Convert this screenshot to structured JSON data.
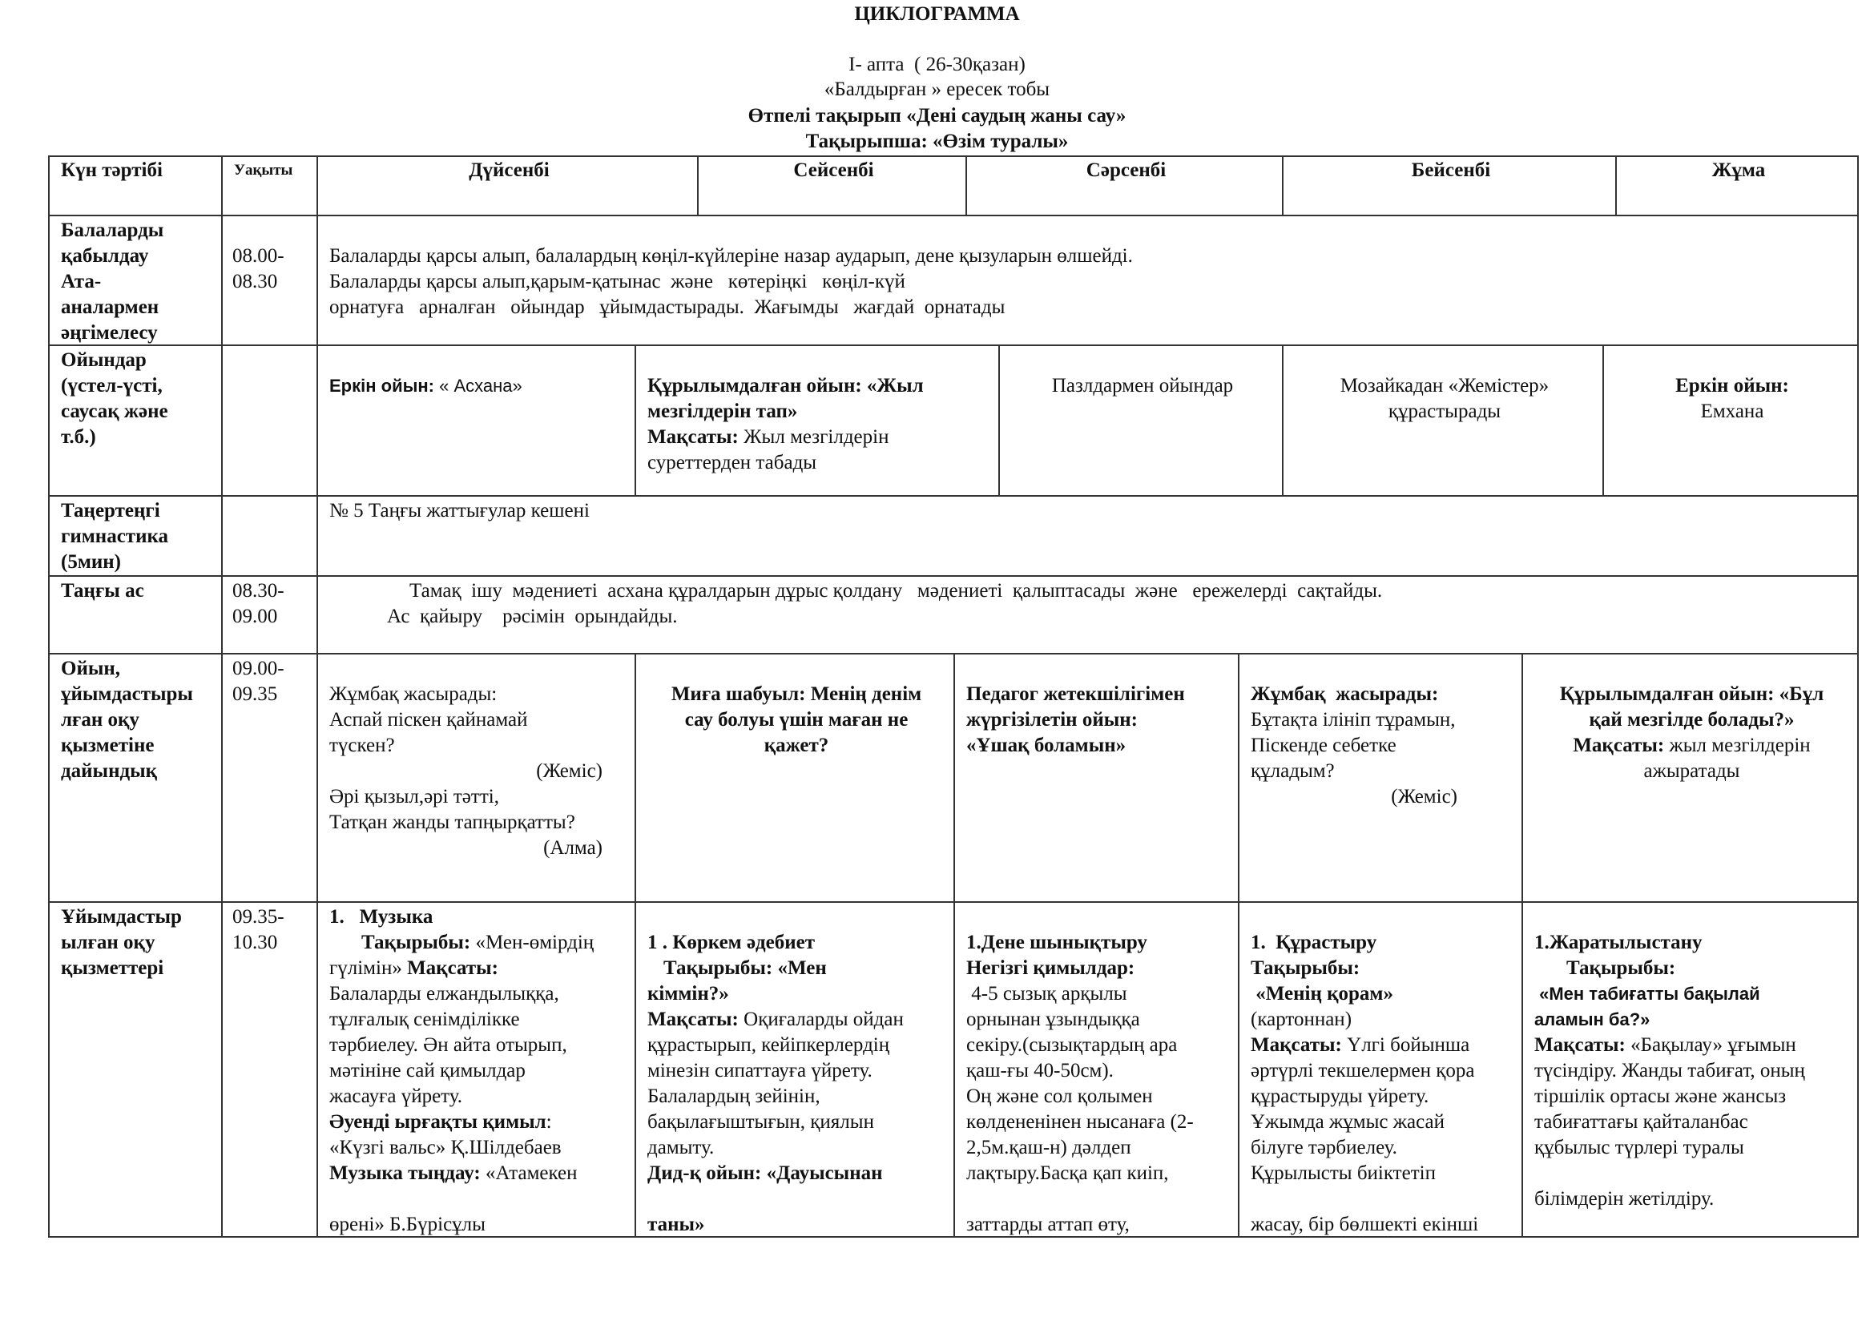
{
  "title": "ЦИКЛОГРАММА",
  "subtitle": {
    "week": "I- апта  ( 26-30қазан)",
    "group": "«Балдырған » ересек тобы",
    "theme": "Өтпелі тақырып «Дені саудың жаны сау»",
    "subtheme": "Тақырыпша: «Өзім туралы»"
  },
  "header": [
    "Күн тәртібі",
    "Уақыты",
    "Дүйсенбі",
    "Сейсенбі",
    "Сәрсенбі",
    "Бейсенбі",
    "Жұма"
  ],
  "rows": [
    {
      "label": [
        "Балаларды",
        "қабылдау",
        "Ата-",
        "аналармен",
        "әңгімелесу"
      ],
      "time": [
        "08.00-",
        "08.30"
      ],
      "cells": [
        {
          "lines": [
            [
              {
                "t": "Балаларды қарсы алып, балалардың көңіл-күйлеріне назар аударып, дене қызуларын өлшейді."
              }
            ],
            [
              {
                "t": "Балаларды қарсы алып,қарым-қатынас  және   көтеріңкі   көңіл-күй"
              }
            ],
            [
              {
                "t": "орнатуға   арналған   ойындар   ұйымдастырады.  Жағымды   жағдай  орнатады"
              }
            ]
          ]
        }
      ]
    },
    {
      "label": [
        "Ойындар",
        "(үстел-үсті,",
        "саусақ және",
        "т.б.)"
      ],
      "time": [],
      "cells": [
        {
          "lines": [
            [
              {
                "t": "Еркін ойын:",
                "b": true
              },
              {
                "t": " « Асхана»"
              }
            ]
          ]
        },
        {
          "lines": [
            [
              {
                "t": "Құрылымдалған ойын: «Жыл",
                "b": true
              }
            ],
            [
              {
                "t": "мезгілдерін тап»",
                "b": true
              }
            ],
            [
              {
                "t": "Мақсаты:",
                "b": true
              },
              {
                "t": " Жыл мезгілдерін"
              }
            ],
            [
              {
                "t": "суреттерден табады"
              }
            ]
          ]
        },
        {
          "lines": [
            [
              {
                "t": "Пазлдармен ойындар"
              }
            ]
          ]
        },
        {
          "lines": [
            [
              {
                "t": "Мозайкадан «Жемістер»"
              }
            ],
            [
              {
                "t": "құрастырады"
              }
            ]
          ]
        },
        {
          "lines": [
            [
              {
                "t": "Еркін ойын:",
                "b": true
              }
            ],
            [
              {
                "t": "Емхана"
              }
            ]
          ]
        }
      ]
    },
    {
      "label": [
        "Таңертеңгі",
        "гимнастика",
        "(5мин)"
      ],
      "time": [],
      "cells": [
        {
          "lines": [
            [
              {
                "t": "№ 5 Таңғы жаттығулар кешені"
              }
            ]
          ]
        }
      ]
    },
    {
      "label": [
        "Таңғы ас"
      ],
      "time": [
        "08.30-",
        "09.00"
      ],
      "cells": [
        {
          "lines": [
            [
              {
                "t": "Тамақ  ішу  мәдениеті  асхана құралдарын дұрыс қолдану   мәдениеті  қалыптасады  және   ережелерді  сақтайды."
              }
            ],
            [
              {
                "t": "Ас  қайыру    рәсімін  орындайды."
              }
            ]
          ]
        }
      ]
    },
    {
      "label": [
        "Ойын,",
        "ұйымдастыры",
        "лған оқу",
        "қызметіне",
        "дайындық"
      ],
      "time": [
        "09.00-",
        "09.35"
      ],
      "cells": [
        {
          "lines": [
            [
              {
                "t": "Жұмбақ жасырады:"
              }
            ],
            [
              {
                "t": "Аспай піскен қайнамай"
              }
            ],
            [
              {
                "t": "түскен?"
              }
            ],
            [
              {
                "t": "(Жеміс)"
              }
            ],
            [
              {
                "t": "Әрі қызыл,әрі тәтті,"
              }
            ],
            [
              {
                "t": "Татқан жанды тапңырқатты?"
              }
            ],
            [
              {
                "t": "(Алма)"
              }
            ]
          ]
        },
        {
          "lines": [
            [
              {
                "t": "Миға шабуыл: Менің денім",
                "b": true
              }
            ],
            [
              {
                "t": "сау болуы үшін маған не",
                "b": true
              }
            ],
            [
              {
                "t": "қажет?",
                "b": true
              }
            ]
          ]
        },
        {
          "lines": [
            [
              {
                "t": "Педагог жетекшілігімен",
                "b": true
              }
            ],
            [
              {
                "t": "жүргізілетін ойын:",
                "b": true
              }
            ],
            [
              {
                "t": "«Ұшақ боламын»",
                "b": true
              }
            ]
          ]
        },
        {
          "lines": [
            [
              {
                "t": "Жұмбақ  жасырады:",
                "b": true
              }
            ],
            [
              {
                "t": "Бұтақта ілініп тұрамын,"
              }
            ],
            [
              {
                "t": "Піскенде себетке"
              }
            ],
            [
              {
                "t": "құладым?"
              }
            ],
            [
              {
                "t": "(Жеміс)"
              }
            ]
          ]
        },
        {
          "lines": [
            [
              {
                "t": "Құрылымдалған ойын: «Бұл",
                "b": true
              }
            ],
            [
              {
                "t": "қай мезгілде болады?»",
                "b": true
              }
            ],
            [
              {
                "t": "Мақсаты:",
                "b": true
              },
              {
                "t": " жыл мезгілдерін"
              }
            ],
            [
              {
                "t": "ажыратады"
              }
            ]
          ]
        }
      ]
    },
    {
      "label": [
        "Ұйымдастыр",
        "ылған оқу",
        "қызметтері"
      ],
      "time": [
        "09.35-",
        "10.30"
      ],
      "cells": [
        {
          "lines": [
            [
              {
                "t": "1.   Музыка",
                "b": true
              }
            ],
            [
              {
                "t": "Тақырыбы:",
                "b": true
              },
              {
                "t": " «Мен-өмірдің"
              }
            ],
            [
              {
                "t": "гүлімін» "
              },
              {
                "t": "Мақсаты:",
                "b": true
              }
            ],
            [
              {
                "t": "Балаларды елжандылыққа,"
              }
            ],
            [
              {
                "t": "тұлғалық сенімділікке"
              }
            ],
            [
              {
                "t": "тәрбиелеу. Ән айта отырып,"
              }
            ],
            [
              {
                "t": "мәтініне сай қимылдар"
              }
            ],
            [
              {
                "t": "жасауға үйрету."
              }
            ],
            [
              {
                "t": "Әуенді ырғақты қимыл",
                "b": true
              },
              {
                "t": ":"
              }
            ],
            [
              {
                "t": "«Күзгі вальс» Қ.Шілдебаев"
              }
            ],
            [
              {
                "t": "Музыка тыңдау:",
                "b": true
              },
              {
                "t": " «Атамекен"
              }
            ],
            [
              {
                "t": "өрені» Б.Бүрісұлы"
              }
            ]
          ]
        },
        {
          "lines": [
            [
              {
                "t": "1 . Көркем әдебиет",
                "b": true
              }
            ],
            [
              {
                "t": "Тақырыбы: «Мен",
                "b": true
              }
            ],
            [
              {
                "t": "кіммін?»",
                "b": true
              }
            ],
            [
              {
                "t": "Мақсаты:",
                "b": true
              },
              {
                "t": " Оқиғаларды ойдан"
              }
            ],
            [
              {
                "t": "құрастырып, кейіпкерлердің"
              }
            ],
            [
              {
                "t": "мінезін сипаттауға үйрету."
              }
            ],
            [
              {
                "t": "Балалардың зейінін,"
              }
            ],
            [
              {
                "t": "бақылағыштығын, қиялын"
              }
            ],
            [
              {
                "t": "дамыту."
              }
            ],
            [
              {
                "t": "Дид-қ ойын: «Дауысынан",
                "b": true
              }
            ],
            [
              {
                "t": "таны»",
                "b": true
              }
            ]
          ]
        },
        {
          "lines": [
            [
              {
                "t": "1.Дене шынықтыру",
                "b": true
              }
            ],
            [
              {
                "t": "Негізгі қимылдар:",
                "b": true
              }
            ],
            [
              {
                "t": " 4-5 сызық арқылы"
              }
            ],
            [
              {
                "t": "орнынан ұзындыққа"
              }
            ],
            [
              {
                "t": "секіру.(сызықтардың ара"
              }
            ],
            [
              {
                "t": "қаш-ғы 40-50см)."
              }
            ],
            [
              {
                "t": "Оң және сол қолымен"
              }
            ],
            [
              {
                "t": "көлдененінен нысанаға (2-"
              }
            ],
            [
              {
                "t": "2,5м.қаш-н) дәлдеп"
              }
            ],
            [
              {
                "t": "лақтыру.Басқа қап киіп,"
              }
            ],
            [
              {
                "t": "заттарды аттап өту,"
              }
            ]
          ]
        },
        {
          "lines": [
            [
              {
                "t": "1.  Құрастыру",
                "b": true
              }
            ],
            [
              {
                "t": "Тақырыбы:",
                "b": true
              }
            ],
            [
              {
                "t": " «Менің қорам»",
                "b": true
              }
            ],
            [
              {
                "t": "(картоннан)"
              }
            ],
            [
              {
                "t": "Мақсаты:",
                "b": true
              },
              {
                "t": " Үлгі бойынша"
              }
            ],
            [
              {
                "t": "әртүрлі текшелермен қора"
              }
            ],
            [
              {
                "t": "құрастыруды үйрету."
              }
            ],
            [
              {
                "t": "Ұжымда жұмыс жасай"
              }
            ],
            [
              {
                "t": "білуге тәрбиелеу."
              }
            ],
            [
              {
                "t": "Құрылысты биіктетіп"
              }
            ],
            [
              {
                "t": "жасау, бір бөлшекті екінші"
              }
            ]
          ]
        },
        {
          "lines": [
            [
              {
                "t": "1.Жаратылыстану",
                "b": true
              }
            ],
            [
              {
                "t": "Тақырыбы:",
                "b": true
              }
            ],
            [
              {
                "t": " «Мен табиғатты бақылай",
                "b": true
              }
            ],
            [
              {
                "t": "аламын ба?»",
                "b": true
              }
            ],
            [
              {
                "t": "Мақсаты:",
                "b": true
              },
              {
                "t": " «Бақылау» ұғымын"
              }
            ],
            [
              {
                "t": "түсіндіру. Жанды табиғат, оның"
              }
            ],
            [
              {
                "t": "тіршілік ортасы және жансыз"
              }
            ],
            [
              {
                "t": "табиғаттағы қайталанбас"
              }
            ],
            [
              {
                "t": "құбылыс түрлері туралы"
              }
            ],
            [
              {
                "t": "білімдерін жетілдіру."
              }
            ]
          ]
        }
      ]
    }
  ]
}
